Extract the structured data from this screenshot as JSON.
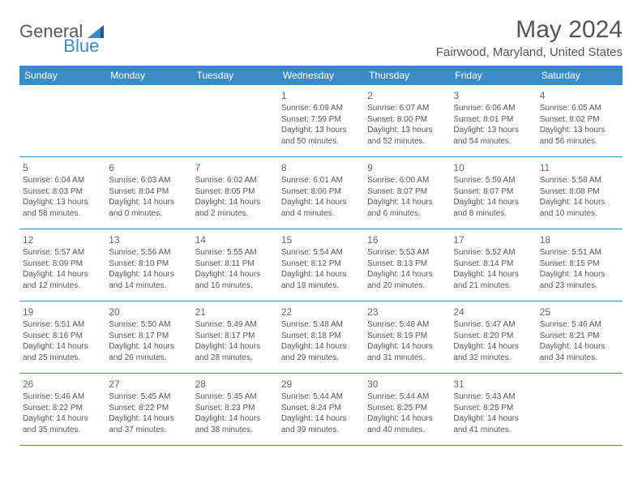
{
  "logo": {
    "general": "General",
    "blue": "Blue"
  },
  "title": "May 2024",
  "location": "Fairwood, Maryland, United States",
  "colors": {
    "header_bg": "#3b8bc4",
    "header_text": "#ffffff",
    "text": "#555555",
    "border": "#3b8bc4"
  },
  "dayNames": [
    "Sunday",
    "Monday",
    "Tuesday",
    "Wednesday",
    "Thursday",
    "Friday",
    "Saturday"
  ],
  "weeks": [
    [
      {
        "n": "",
        "sr": "",
        "ss": "",
        "dl": ""
      },
      {
        "n": "",
        "sr": "",
        "ss": "",
        "dl": ""
      },
      {
        "n": "",
        "sr": "",
        "ss": "",
        "dl": ""
      },
      {
        "n": "1",
        "sr": "6:09 AM",
        "ss": "7:59 PM",
        "dl": "13 hours and 50 minutes."
      },
      {
        "n": "2",
        "sr": "6:07 AM",
        "ss": "8:00 PM",
        "dl": "13 hours and 52 minutes."
      },
      {
        "n": "3",
        "sr": "6:06 AM",
        "ss": "8:01 PM",
        "dl": "13 hours and 54 minutes."
      },
      {
        "n": "4",
        "sr": "6:05 AM",
        "ss": "8:02 PM",
        "dl": "13 hours and 56 minutes."
      }
    ],
    [
      {
        "n": "5",
        "sr": "6:04 AM",
        "ss": "8:03 PM",
        "dl": "13 hours and 58 minutes."
      },
      {
        "n": "6",
        "sr": "6:03 AM",
        "ss": "8:04 PM",
        "dl": "14 hours and 0 minutes."
      },
      {
        "n": "7",
        "sr": "6:02 AM",
        "ss": "8:05 PM",
        "dl": "14 hours and 2 minutes."
      },
      {
        "n": "8",
        "sr": "6:01 AM",
        "ss": "8:06 PM",
        "dl": "14 hours and 4 minutes."
      },
      {
        "n": "9",
        "sr": "6:00 AM",
        "ss": "8:07 PM",
        "dl": "14 hours and 6 minutes."
      },
      {
        "n": "10",
        "sr": "5:59 AM",
        "ss": "8:07 PM",
        "dl": "14 hours and 8 minutes."
      },
      {
        "n": "11",
        "sr": "5:58 AM",
        "ss": "8:08 PM",
        "dl": "14 hours and 10 minutes."
      }
    ],
    [
      {
        "n": "12",
        "sr": "5:57 AM",
        "ss": "8:09 PM",
        "dl": "14 hours and 12 minutes."
      },
      {
        "n": "13",
        "sr": "5:56 AM",
        "ss": "8:10 PM",
        "dl": "14 hours and 14 minutes."
      },
      {
        "n": "14",
        "sr": "5:55 AM",
        "ss": "8:11 PM",
        "dl": "14 hours and 16 minutes."
      },
      {
        "n": "15",
        "sr": "5:54 AM",
        "ss": "8:12 PM",
        "dl": "14 hours and 18 minutes."
      },
      {
        "n": "16",
        "sr": "5:53 AM",
        "ss": "8:13 PM",
        "dl": "14 hours and 20 minutes."
      },
      {
        "n": "17",
        "sr": "5:52 AM",
        "ss": "8:14 PM",
        "dl": "14 hours and 21 minutes."
      },
      {
        "n": "18",
        "sr": "5:51 AM",
        "ss": "8:15 PM",
        "dl": "14 hours and 23 minutes."
      }
    ],
    [
      {
        "n": "19",
        "sr": "5:51 AM",
        "ss": "8:16 PM",
        "dl": "14 hours and 25 minutes."
      },
      {
        "n": "20",
        "sr": "5:50 AM",
        "ss": "8:17 PM",
        "dl": "14 hours and 26 minutes."
      },
      {
        "n": "21",
        "sr": "5:49 AM",
        "ss": "8:17 PM",
        "dl": "14 hours and 28 minutes."
      },
      {
        "n": "22",
        "sr": "5:48 AM",
        "ss": "8:18 PM",
        "dl": "14 hours and 29 minutes."
      },
      {
        "n": "23",
        "sr": "5:48 AM",
        "ss": "8:19 PM",
        "dl": "14 hours and 31 minutes."
      },
      {
        "n": "24",
        "sr": "5:47 AM",
        "ss": "8:20 PM",
        "dl": "14 hours and 32 minutes."
      },
      {
        "n": "25",
        "sr": "5:46 AM",
        "ss": "8:21 PM",
        "dl": "14 hours and 34 minutes."
      }
    ],
    [
      {
        "n": "26",
        "sr": "5:46 AM",
        "ss": "8:22 PM",
        "dl": "14 hours and 35 minutes."
      },
      {
        "n": "27",
        "sr": "5:45 AM",
        "ss": "8:22 PM",
        "dl": "14 hours and 37 minutes."
      },
      {
        "n": "28",
        "sr": "5:45 AM",
        "ss": "8:23 PM",
        "dl": "14 hours and 38 minutes."
      },
      {
        "n": "29",
        "sr": "5:44 AM",
        "ss": "8:24 PM",
        "dl": "14 hours and 39 minutes."
      },
      {
        "n": "30",
        "sr": "5:44 AM",
        "ss": "8:25 PM",
        "dl": "14 hours and 40 minutes."
      },
      {
        "n": "31",
        "sr": "5:43 AM",
        "ss": "8:25 PM",
        "dl": "14 hours and 41 minutes."
      },
      {
        "n": "",
        "sr": "",
        "ss": "",
        "dl": ""
      }
    ]
  ],
  "labels": {
    "sunrise": "Sunrise:",
    "sunset": "Sunset:",
    "daylight": "Daylight:"
  }
}
